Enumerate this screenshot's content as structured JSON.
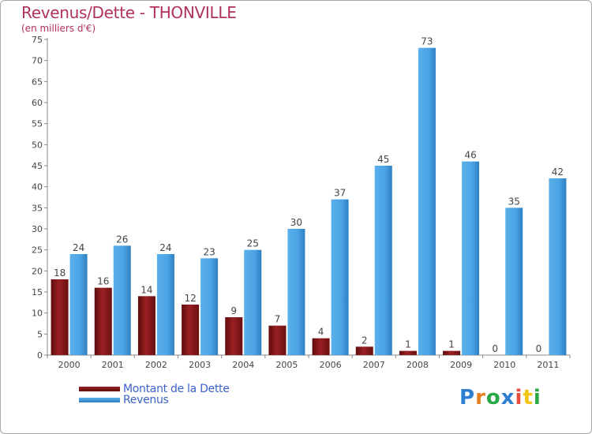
{
  "header": {
    "title": "Revenus/Dette - THONVILLE",
    "subtitle": "(en milliers d'€)"
  },
  "chart_data": {
    "type": "bar",
    "title": "Revenus/Dette - THONVILLE",
    "subtitle": "(en milliers d'€)",
    "categories": [
      "2000",
      "2001",
      "2002",
      "2003",
      "2004",
      "2005",
      "2006",
      "2007",
      "2008",
      "2009",
      "2010",
      "2011"
    ],
    "series": [
      {
        "name": "Montant de la Dette",
        "color": "#7a1416",
        "values": [
          18,
          16,
          14,
          12,
          9,
          7,
          4,
          2,
          1,
          1,
          0,
          0
        ]
      },
      {
        "name": "Revenus",
        "color": "#3d9ce0",
        "values": [
          24,
          26,
          24,
          23,
          25,
          30,
          37,
          45,
          73,
          46,
          35,
          42
        ]
      }
    ],
    "ylim": [
      0,
      75
    ],
    "yticks": [
      0,
      5,
      10,
      15,
      20,
      25,
      30,
      35,
      40,
      45,
      50,
      55,
      60,
      65,
      70,
      75
    ],
    "xlabel": "",
    "ylabel": "",
    "grid": false,
    "legend": "bottom-left"
  },
  "logo": {
    "letters": [
      "P",
      "r",
      "o",
      "x",
      "i",
      "t",
      "i"
    ],
    "colors": [
      "#2e7fd0",
      "#e67e22",
      "#27a844",
      "#2e7fd0",
      "#e74c3c",
      "#f1c40f",
      "#27a844"
    ]
  }
}
